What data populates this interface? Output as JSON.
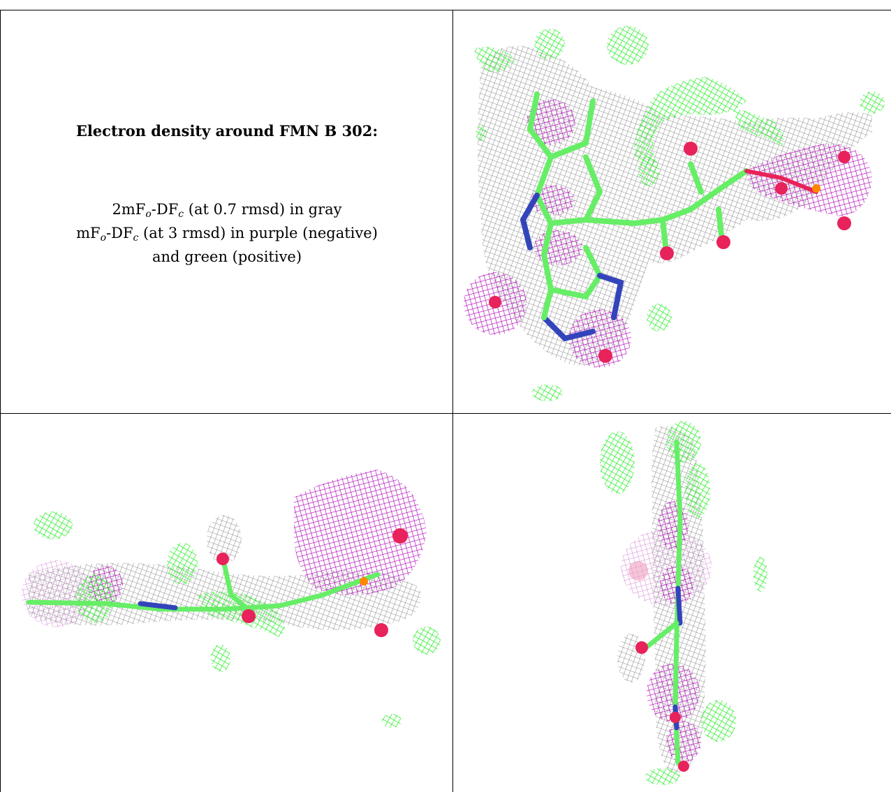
{
  "caption": {
    "title": "Electron density around FMN B 302:",
    "line1": {
      "a": "2mF",
      "a_sub": "o",
      "b": "-DF",
      "b_sub": "c",
      "rest": " (at 0.7 rmsd) in gray"
    },
    "line2": {
      "a": "mF",
      "a_sub": "o",
      "b": "-DF",
      "b_sub": "c",
      "rest": " (at 3 rmsd) in purple (negative)"
    },
    "line3": "and green (positive)"
  },
  "colors": {
    "gray_density": "#9e9e9e",
    "negative_density": "#b000b8",
    "positive_density": "#22ee22",
    "carbon": "#66ee66",
    "nitrogen": "#3344bb",
    "oxygen": "#e8225a",
    "phosphorus": "#ff8800"
  },
  "panels": [
    {
      "view": "top-right",
      "icon": "electron-density-view-front"
    },
    {
      "view": "bottom-left",
      "icon": "electron-density-view-side"
    },
    {
      "view": "bottom-right",
      "icon": "electron-density-view-edge"
    }
  ]
}
